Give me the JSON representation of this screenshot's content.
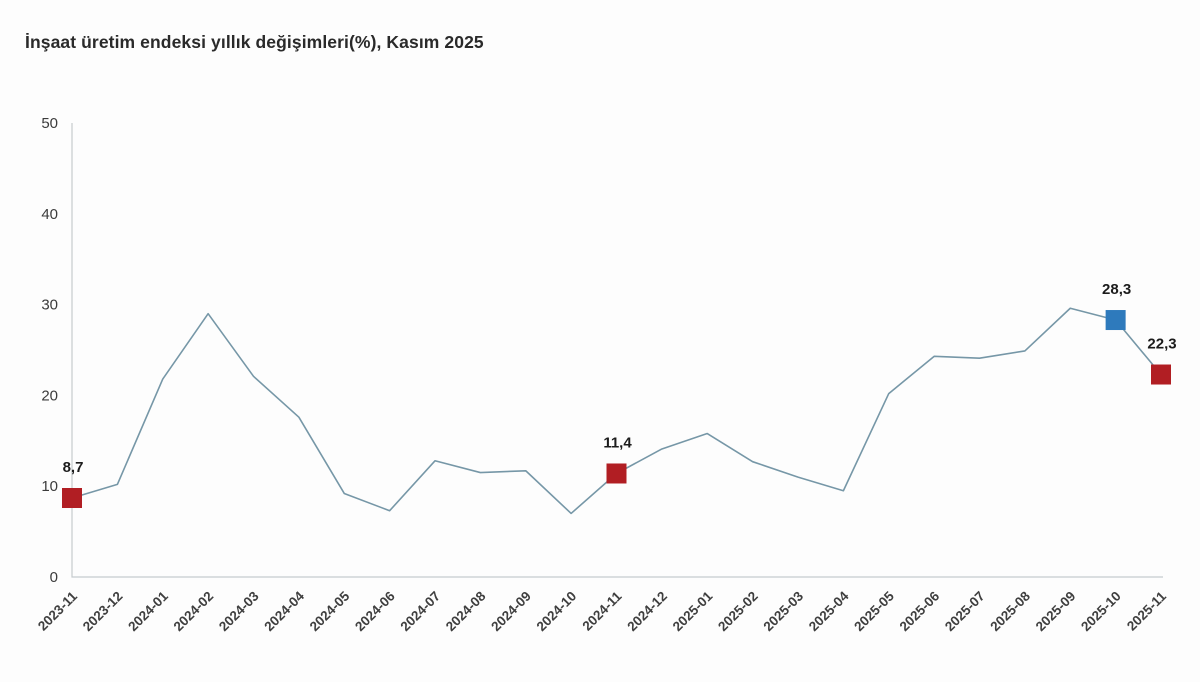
{
  "page": {
    "background": "#fdfdfd"
  },
  "chart_data": {
    "type": "line",
    "title": "İnşaat üretim endeksi yıllık değişimleri(%), Kasım 2025",
    "xlabel": "",
    "ylabel": "",
    "categories": [
      "2023-11",
      "2023-12",
      "2024-01",
      "2024-02",
      "2024-03",
      "2024-04",
      "2024-05",
      "2024-06",
      "2024-07",
      "2024-08",
      "2024-09",
      "2024-10",
      "2024-11",
      "2024-12",
      "2025-01",
      "2025-02",
      "2025-03",
      "2025-04",
      "2025-05",
      "2025-06",
      "2025-07",
      "2025-08",
      "2025-09",
      "2025-10",
      "2025-11"
    ],
    "values": [
      8.7,
      10.2,
      21.8,
      29.0,
      22.1,
      17.6,
      9.2,
      7.3,
      12.8,
      11.5,
      11.7,
      7.0,
      11.4,
      14.1,
      15.8,
      12.7,
      11.0,
      9.5,
      20.2,
      24.3,
      24.1,
      24.9,
      29.6,
      28.3,
      22.3
    ],
    "ylim": [
      0,
      50
    ],
    "yticks": [
      0,
      10,
      20,
      30,
      40,
      50
    ],
    "grid": false,
    "legend": false,
    "line_color": "#7697a7",
    "axis_color": "#c6cbce",
    "tick_text_color": "#3b3b3b",
    "point_label_color": "#1c1c1c",
    "highlighted_points": [
      {
        "category": "2023-11",
        "value": 8.7,
        "label": "8,7",
        "marker_color": "#b11e23"
      },
      {
        "category": "2024-11",
        "value": 11.4,
        "label": "11,4",
        "marker_color": "#b11e23"
      },
      {
        "category": "2025-10",
        "value": 28.3,
        "label": "28,3",
        "marker_color": "#2e7abc"
      },
      {
        "category": "2025-11",
        "value": 22.3,
        "label": "22,3",
        "marker_color": "#b11e23"
      }
    ]
  }
}
